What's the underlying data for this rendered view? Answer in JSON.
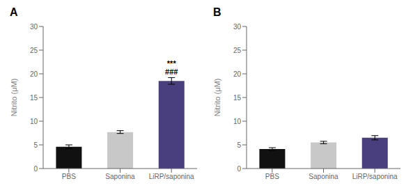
{
  "chart_data": [
    {
      "type": "bar",
      "title": "A",
      "categories": [
        "PBS",
        "Saponina",
        "LiRP/saponina"
      ],
      "values": [
        4.6,
        7.7,
        18.5
      ],
      "errors": [
        0.4,
        0.3,
        0.7
      ],
      "colors": [
        "#111111",
        "#c8c8c8",
        "#4a3f7e"
      ],
      "ylabel": "Nitrito (μM)",
      "ylim": [
        0,
        30
      ],
      "yticks": [
        0,
        5,
        10,
        15,
        20,
        25,
        30
      ],
      "grid": false,
      "annotations": [
        {
          "text": "***",
          "category": "LiRP/saponina"
        },
        {
          "text": "###",
          "category": "LiRP/saponina"
        }
      ]
    },
    {
      "type": "bar",
      "title": "B",
      "categories": [
        "PBS",
        "Saponina",
        "LiRP/saponina"
      ],
      "values": [
        4.1,
        5.5,
        6.5
      ],
      "errors": [
        0.3,
        0.25,
        0.45
      ],
      "colors": [
        "#111111",
        "#c8c8c8",
        "#4a3f7e"
      ],
      "ylabel": "Nitrito (μM)",
      "ylim": [
        0,
        30
      ],
      "yticks": [
        0,
        5,
        10,
        15,
        20,
        25,
        30
      ],
      "grid": false
    }
  ]
}
